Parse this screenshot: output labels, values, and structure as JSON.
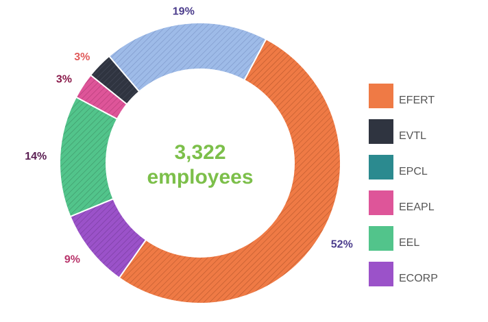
{
  "center": {
    "value": "3,322",
    "label": "employees",
    "color": "#7cbf4a"
  },
  "chart_data": {
    "type": "pie",
    "style": "donut",
    "hatched": true,
    "legend_position": "right",
    "slices": [
      {
        "name": "EFERT",
        "value": 52,
        "label": "52%",
        "color": "#ef7a45",
        "label_color": "#4b3c8c",
        "hatch": "#8a3a18"
      },
      {
        "name": "ECORP",
        "value": 9,
        "label": "9%",
        "color": "#9b52c9",
        "label_color": "#b8336a",
        "hatch": "#5a2a7a"
      },
      {
        "name": "EEL",
        "value": 14,
        "label": "14%",
        "color": "#52c48b",
        "label_color": "#5a1e52",
        "hatch": "#2a6a47"
      },
      {
        "name": "EEAPL",
        "value": 3,
        "label": "3%",
        "color": "#de5599",
        "label_color": "#8a1a4a",
        "hatch": "#8a2458"
      },
      {
        "name": "EVTL",
        "value": 3,
        "label": "3%",
        "color": "#2f3440",
        "label_color": "#e05a5a",
        "hatch": "#5a6070"
      },
      {
        "name": "",
        "value": 19,
        "label": "19%",
        "color": "#9ebbe8",
        "label_color": "#4b3c8c",
        "hatch": "#5b74a8"
      }
    ],
    "legend": [
      {
        "name": "EFERT",
        "color": "#ef7a45"
      },
      {
        "name": "EVTL",
        "color": "#2f3440"
      },
      {
        "name": "EPCL",
        "color": "#2b8a8f"
      },
      {
        "name": "EEAPL",
        "color": "#de5599"
      },
      {
        "name": "EEL",
        "color": "#52c48b"
      },
      {
        "name": "ECORP",
        "color": "#9b52c9"
      }
    ]
  }
}
